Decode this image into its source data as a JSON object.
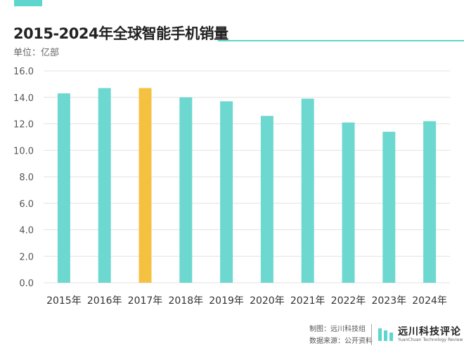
{
  "colors": {
    "accent": "#5ed6cd",
    "bar": "#6dd8cf",
    "highlight": "#f5c141",
    "grid": "#e2e2e2",
    "tick_text": "#555555"
  },
  "header": {
    "title": "2015-2024年全球智能手机销量",
    "unit": "单位：亿部"
  },
  "chart_data": {
    "type": "bar",
    "title": "2015-2024年全球智能手机销量",
    "ylabel": "单位：亿部",
    "xlabel": "",
    "categories": [
      "2015年",
      "2016年",
      "2017年",
      "2018年",
      "2019年",
      "2020年",
      "2021年",
      "2022年",
      "2023年",
      "2024年"
    ],
    "values": [
      14.3,
      14.7,
      14.7,
      14.0,
      13.7,
      12.6,
      13.9,
      12.1,
      11.4,
      12.2
    ],
    "highlight_category": "2017年",
    "ylim": [
      0,
      16
    ],
    "yticks": [
      "0.0",
      "2.0",
      "4.0",
      "6.0",
      "8.0",
      "10.0",
      "12.0",
      "14.0",
      "16.0"
    ],
    "grid": true,
    "legend": "none"
  },
  "footer": {
    "credit_line": "制图：远川科技组",
    "source_line": "数据来源：公开资料",
    "brand_name": "远川科技评论",
    "brand_sub": "YuanChuan Technology Review"
  }
}
